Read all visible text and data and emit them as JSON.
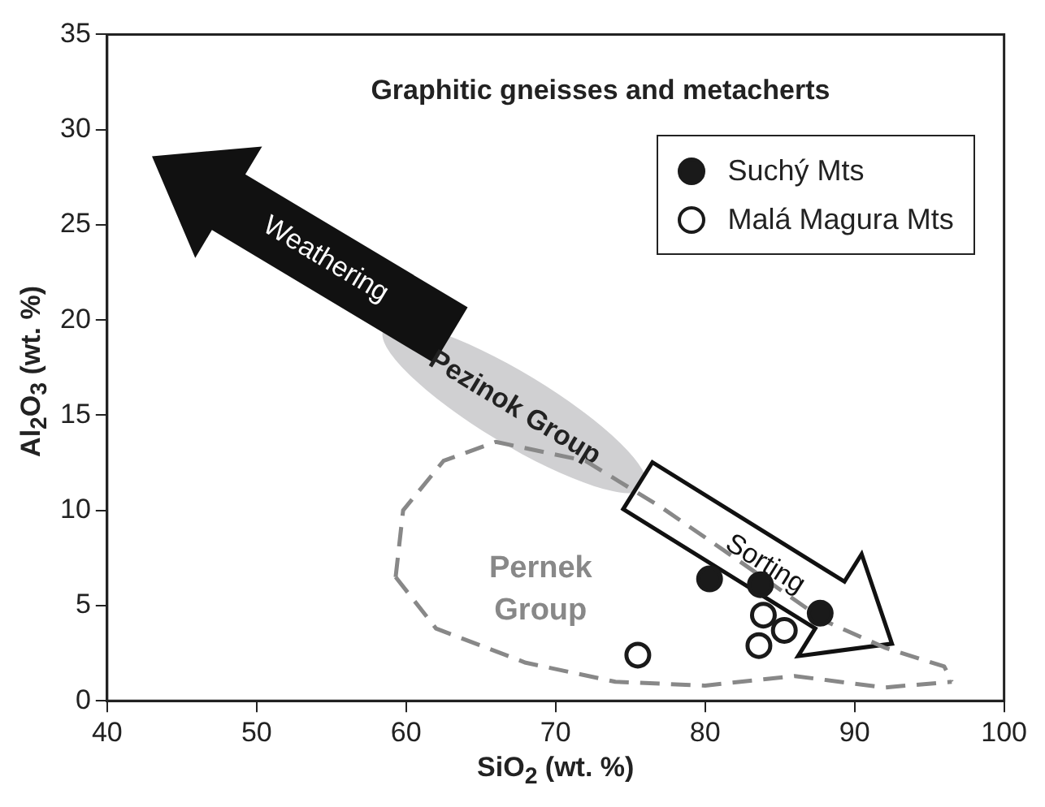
{
  "chart_data": {
    "type": "scatter",
    "title": "Graphitic gneisses and metacherts",
    "xlabel": "SiO$_{2}$ (wt. %)",
    "ylabel": "Al$_{2}$O$_{3}$ (wt. %)",
    "series": [
      {
        "name": "Suchý Mts",
        "color": "#1a1a1a",
        "x": [
          80.3,
          83.7,
          87.7
        ],
        "values": [
          6.4,
          6.1,
          4.6
        ]
      },
      {
        "name": "Malá Magura Mts",
        "color": "#1a1a1a",
        "x": [
          75.5,
          83.9,
          85.3,
          83.6
        ],
        "values": [
          2.4,
          4.5,
          3.7,
          2.9
        ]
      },
      {
        "name": "Pernek Group",
        "type": "line",
        "color": "#888888",
        "line_style": "dashed",
        "marker": "none",
        "x": [
          59.3,
          59.8,
          62.5,
          66,
          72,
          77,
          82,
          88,
          92,
          96,
          96.5
        ],
        "values": [
          6.5,
          10,
          12.6,
          13.6,
          12.6,
          10.2,
          7.5,
          4.2,
          2.8,
          1.8,
          1.0
        ]
      },
      {
        "type": "line",
        "color": "#888888",
        "line_style": "dashed",
        "marker": "none",
        "x": [
          59.3,
          62,
          68,
          74,
          80,
          86,
          92,
          96.5
        ],
        "values": [
          6.5,
          3.8,
          2.0,
          1.0,
          0.8,
          1.3,
          0.7,
          1.0
        ]
      }
    ],
    "xlim": [
      40,
      100
    ],
    "xticks": [
      40,
      50,
      60,
      70,
      80,
      90,
      100
    ],
    "ylim": [
      0,
      35
    ],
    "yticks": [
      0,
      5,
      10,
      15,
      20,
      25,
      30,
      35
    ],
    "grid": false,
    "legend": "top right",
    "marker": "circle",
    "annotations": [
      "Weathering",
      "Sorting",
      "Pezinok Group"
    ]
  }
}
